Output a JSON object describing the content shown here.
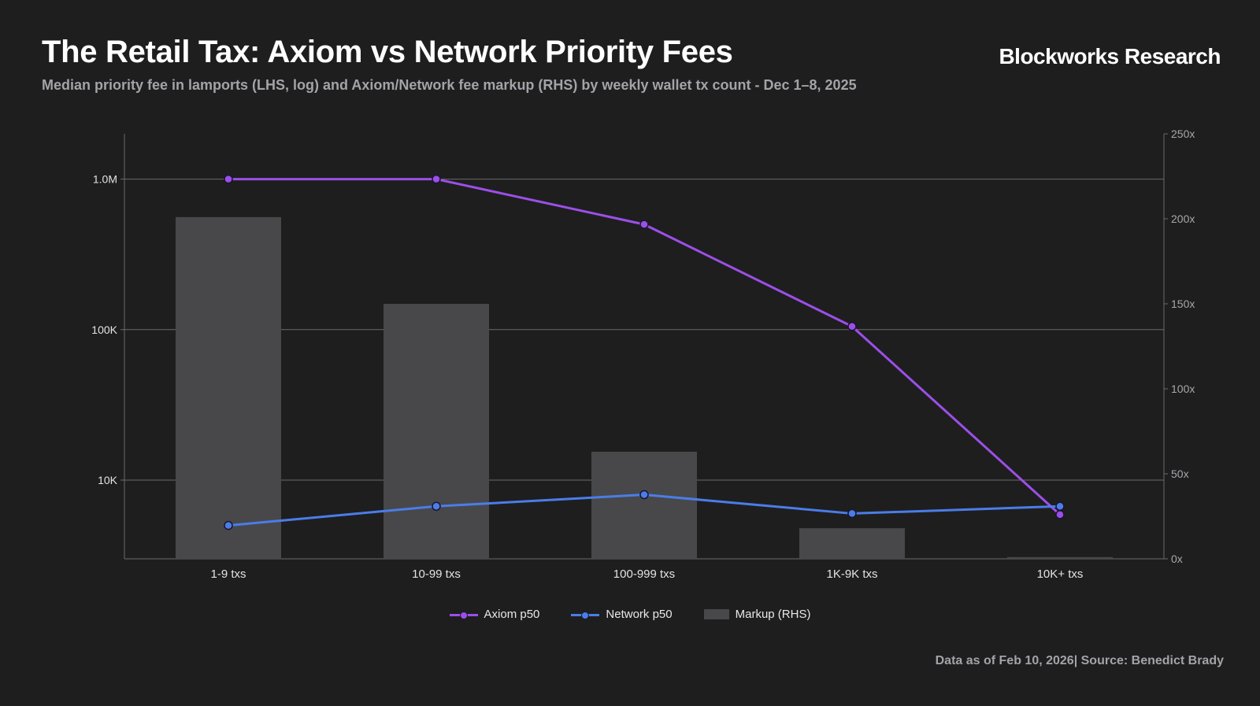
{
  "header": {
    "title": "The Retail Tax: Axiom vs Network Priority Fees",
    "subtitle": "Median priority fee in lamports (LHS, log) and Axiom/Network fee markup (RHS) by weekly wallet tx count - Dec 1–8, 2025",
    "brand": "Blockworks Research"
  },
  "footer": {
    "source": "Data as of Feb 10, 2026| Source: Benedict Brady"
  },
  "colors": {
    "axiom": "#9c4fe8",
    "network": "#4a7de8",
    "markup": "#48484b",
    "grid": "#6a6a6d",
    "axis_text": "#e3e3e5",
    "rhs_text": "#a8a8ac"
  },
  "chart_data": {
    "type": "bar+line",
    "categories": [
      "1-9 txs",
      "10-99 txs",
      "100-999 txs",
      "1K-9K txs",
      "10K+ txs"
    ],
    "series": [
      {
        "name": "Axiom p50",
        "kind": "line",
        "axis": "left",
        "values": [
          1000000,
          1000000,
          500000,
          105000,
          5900
        ]
      },
      {
        "name": "Network p50",
        "kind": "line",
        "axis": "left",
        "values": [
          5000,
          6700,
          8000,
          6000,
          6700
        ]
      },
      {
        "name": "Markup (RHS)",
        "kind": "bar",
        "axis": "right",
        "values": [
          201,
          150,
          63,
          18,
          1
        ]
      }
    ],
    "left_axis": {
      "scale": "log",
      "range": [
        3000,
        2000000
      ],
      "ticks": [
        {
          "value": 1000000,
          "label": "1.0M"
        },
        {
          "value": 100000,
          "label": "100K"
        },
        {
          "value": 10000,
          "label": "10K"
        }
      ]
    },
    "right_axis": {
      "scale": "linear",
      "range": [
        0,
        250
      ],
      "ticks": [
        {
          "value": 0,
          "label": "0x"
        },
        {
          "value": 50,
          "label": "50x"
        },
        {
          "value": 100,
          "label": "100x"
        },
        {
          "value": 150,
          "label": "150x"
        },
        {
          "value": 200,
          "label": "200x"
        },
        {
          "value": 250,
          "label": "250x"
        }
      ]
    },
    "legend": [
      "Axiom p50",
      "Network p50",
      "Markup (RHS)"
    ],
    "legend_position": "bottom-center",
    "grid": "horizontal at left-axis ticks"
  }
}
